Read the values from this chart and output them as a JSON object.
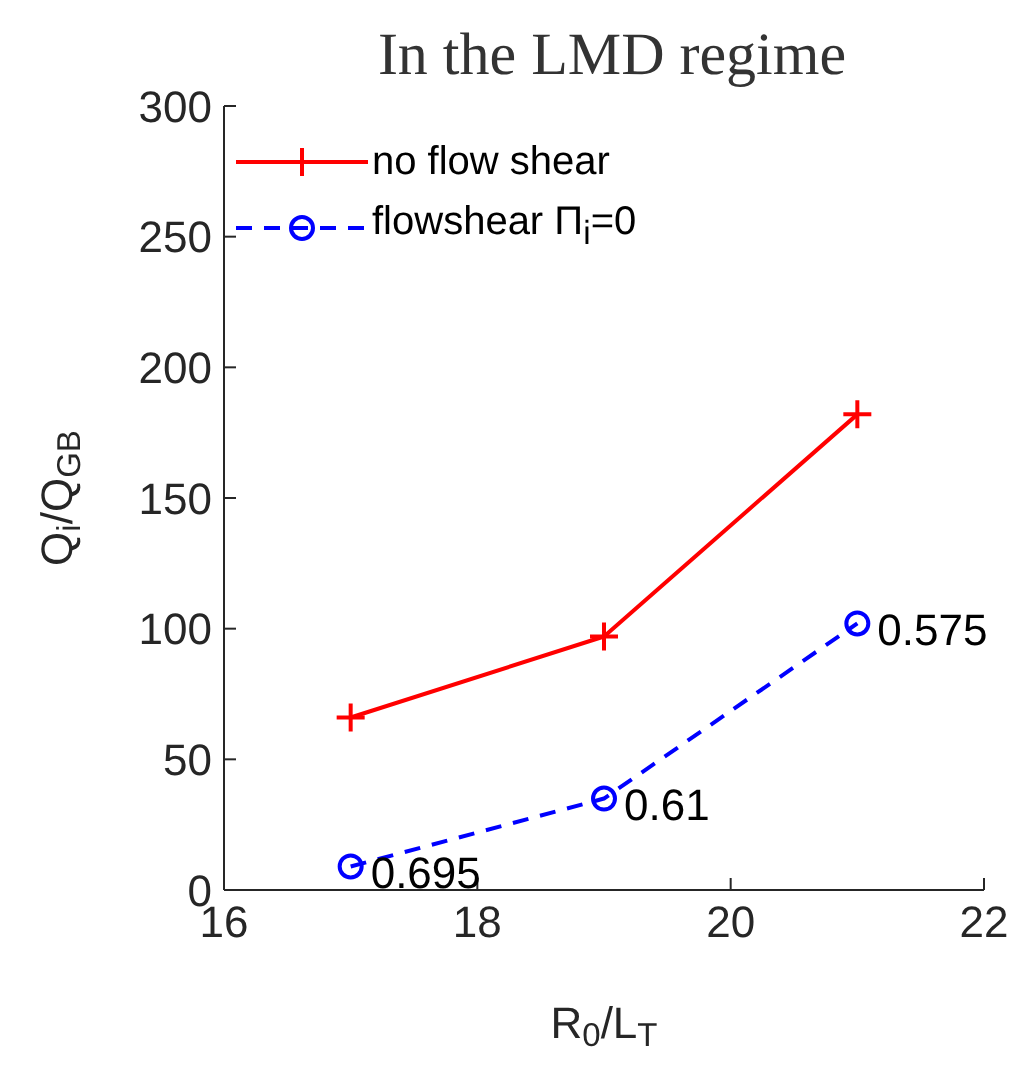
{
  "chart_data": {
    "type": "line",
    "title": "In the LMD regime",
    "xlabel": "R$_{0}$/L$_{T}$",
    "ylabel": "Q$_{i}$/Q$_{GB}$",
    "x": [
      17,
      19,
      21
    ],
    "series": [
      {
        "name": "no flow shear",
        "color": "#ff0000",
        "values": [
          66,
          97,
          182
        ],
        "marker": "cross",
        "line_style": "solid"
      },
      {
        "name": "flowshear Π$_{i}$=0",
        "color": "#0000ff",
        "values": [
          9,
          35,
          102
        ],
        "marker": "circle",
        "line_style": "dashed"
      }
    ],
    "xlim": [
      16,
      22
    ],
    "xticks": [
      16,
      18,
      20,
      22
    ],
    "ylim": [
      0,
      300
    ],
    "yticks": [
      0,
      50,
      100,
      150,
      200,
      250,
      300
    ],
    "legend": "top left",
    "annotations": [
      {
        "text": "0.695",
        "x": 17,
        "y": 9
      },
      {
        "text": "0.61",
        "x": 19,
        "y": 35
      },
      {
        "text": "0.575",
        "x": 21,
        "y": 102
      }
    ]
  }
}
